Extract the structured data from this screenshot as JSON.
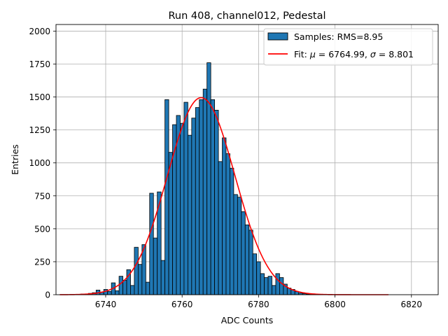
{
  "chart_data": {
    "type": "bar",
    "title": "Run 408, channel012, Pedestal",
    "xlabel": "ADC Counts",
    "ylabel": "Entries",
    "xlim": [
      6727,
      6827
    ],
    "ylim": [
      0,
      2050
    ],
    "xticks": [
      6740,
      6760,
      6780,
      6800,
      6820
    ],
    "yticks": [
      0,
      250,
      500,
      750,
      1000,
      1250,
      1500,
      1750,
      2000
    ],
    "grid": true,
    "legend_position": "top-right",
    "histogram": {
      "name": "Samples: RMS=8.95",
      "color": "#1f77b4",
      "bin_width": 1,
      "bin_centers": [
        6731,
        6732,
        6733,
        6734,
        6735,
        6736,
        6737,
        6738,
        6739,
        6740,
        6741,
        6742,
        6743,
        6744,
        6745,
        6746,
        6747,
        6748,
        6749,
        6750,
        6751,
        6752,
        6753,
        6754,
        6755,
        6756,
        6757,
        6758,
        6759,
        6760,
        6761,
        6762,
        6763,
        6764,
        6765,
        6766,
        6767,
        6768,
        6769,
        6770,
        6771,
        6772,
        6773,
        6774,
        6775,
        6776,
        6777,
        6778,
        6779,
        6780,
        6781,
        6782,
        6783,
        6784,
        6785,
        6786,
        6787,
        6788,
        6789,
        6790,
        6791,
        6792,
        6793,
        6794,
        6795,
        6796,
        6797,
        6798
      ],
      "counts": [
        1,
        2,
        3,
        5,
        6,
        10,
        15,
        35,
        20,
        40,
        25,
        90,
        30,
        140,
        110,
        190,
        70,
        360,
        230,
        380,
        95,
        770,
        430,
        780,
        260,
        1480,
        1080,
        1290,
        1360,
        1300,
        1460,
        1210,
        1340,
        1420,
        1480,
        1560,
        1760,
        1480,
        1400,
        1010,
        1190,
        1070,
        960,
        760,
        740,
        630,
        530,
        490,
        310,
        250,
        160,
        130,
        140,
        70,
        160,
        130,
        80,
        50,
        40,
        25,
        12,
        8,
        5,
        3,
        2,
        1,
        1,
        1
      ]
    },
    "fit": {
      "name": "Fit: μ = 6764.99, σ = 8.801",
      "label_prefix": "Fit: ",
      "label_mu": "μ",
      "label_mu_value": " = 6764.99, ",
      "label_sigma": "σ",
      "label_sigma_value": " = 8.801",
      "color": "#ff0000",
      "mu": 6764.99,
      "sigma": 8.801,
      "amplitude": 1495,
      "x_range": [
        6728,
        6814
      ]
    }
  }
}
